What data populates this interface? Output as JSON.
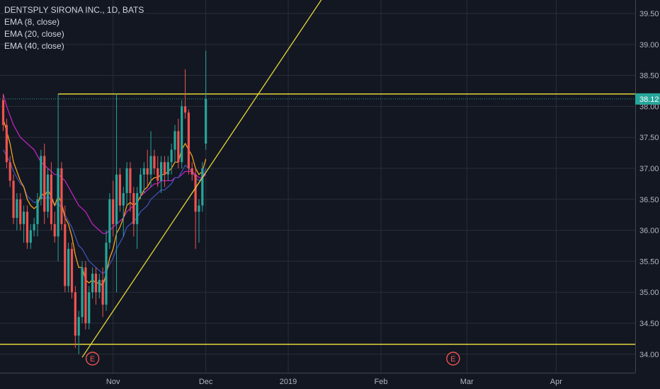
{
  "header": {
    "symbol_line": "DENTSPLY SIRONA INC., 1D, BATS"
  },
  "indicators": [
    {
      "label": "EMA (8, close)",
      "color": "#f7a21b"
    },
    {
      "label": "EMA (20, close)",
      "color": "#3f51b5"
    },
    {
      "label": "EMA (40, close)",
      "color": "#c021c0"
    }
  ],
  "colors": {
    "background": "#131722",
    "grid": "#2a2e39",
    "up": "#26a69a",
    "down": "#ef5350",
    "trendline": "#e5d63a",
    "price_line": "#26a69a",
    "axis_text": "#b2b5be"
  },
  "chart_data": {
    "type": "candlestick",
    "title": "DENTSPLY SIRONA INC., 1D, BATS",
    "y_axis": {
      "ylim": [
        33.8,
        39.7
      ],
      "ticks": [
        "34.00",
        "34.50",
        "35.00",
        "35.50",
        "36.00",
        "36.50",
        "37.00",
        "37.50",
        "38.00",
        "38.50",
        "39.00",
        "39.50"
      ],
      "side": "right"
    },
    "x_axis": {
      "ticks": [
        "Nov",
        "Dec",
        "2019",
        "Feb",
        "Mar",
        "Apr"
      ],
      "tick_index": [
        32,
        59,
        83,
        110,
        135,
        161
      ]
    },
    "current_price": "38.12",
    "ohlc": [
      [
        38.1,
        38.2,
        37.6,
        37.7
      ],
      [
        37.7,
        37.8,
        37.0,
        37.1
      ],
      [
        37.1,
        37.2,
        36.7,
        36.8
      ],
      [
        36.8,
        36.9,
        36.1,
        36.2
      ],
      [
        36.2,
        36.6,
        36.0,
        36.5
      ],
      [
        36.5,
        36.6,
        36.0,
        36.1
      ],
      [
        36.1,
        36.4,
        35.8,
        36.3
      ],
      [
        36.3,
        36.4,
        35.7,
        35.8
      ],
      [
        35.8,
        36.1,
        35.7,
        36.0
      ],
      [
        36.0,
        36.2,
        35.9,
        36.1
      ],
      [
        36.1,
        36.6,
        35.9,
        36.5
      ],
      [
        36.5,
        37.3,
        36.4,
        37.2
      ],
      [
        37.2,
        37.4,
        36.1,
        36.3
      ],
      [
        36.3,
        37.0,
        36.2,
        36.9
      ],
      [
        36.9,
        37.1,
        36.0,
        36.1
      ],
      [
        36.1,
        36.3,
        35.8,
        35.9
      ],
      [
        35.9,
        38.2,
        35.5,
        37.0
      ],
      [
        37.0,
        37.1,
        36.0,
        36.1
      ],
      [
        36.1,
        36.4,
        35.0,
        35.1
      ],
      [
        35.1,
        35.8,
        35.0,
        35.7
      ],
      [
        35.7,
        35.8,
        34.9,
        35.0
      ],
      [
        35.0,
        35.1,
        34.1,
        34.3
      ],
      [
        34.3,
        34.7,
        34.0,
        34.6
      ],
      [
        34.6,
        35.5,
        34.5,
        35.4
      ],
      [
        35.4,
        35.5,
        34.4,
        34.5
      ],
      [
        34.5,
        35.1,
        34.4,
        35.0
      ],
      [
        35.0,
        35.4,
        34.9,
        35.3
      ],
      [
        35.3,
        35.4,
        34.8,
        35.0
      ],
      [
        35.0,
        35.3,
        34.9,
        35.2
      ],
      [
        35.2,
        35.4,
        34.6,
        34.8
      ],
      [
        34.8,
        36.0,
        34.7,
        35.8
      ],
      [
        35.8,
        36.6,
        35.7,
        36.5
      ],
      [
        36.5,
        36.8,
        35.9,
        36.1
      ],
      [
        36.1,
        38.2,
        35.0,
        36.9
      ],
      [
        36.9,
        37.0,
        36.3,
        36.4
      ],
      [
        36.4,
        36.7,
        35.9,
        36.6
      ],
      [
        36.6,
        37.1,
        36.4,
        37.0
      ],
      [
        37.0,
        37.1,
        36.3,
        36.6
      ],
      [
        36.6,
        36.7,
        35.9,
        36.1
      ],
      [
        36.1,
        36.7,
        35.7,
        36.6
      ],
      [
        36.6,
        37.0,
        36.5,
        36.9
      ],
      [
        36.9,
        37.1,
        36.6,
        37.0
      ],
      [
        37.0,
        37.3,
        36.7,
        36.9
      ],
      [
        36.9,
        37.6,
        36.7,
        37.2
      ],
      [
        37.2,
        37.3,
        36.9,
        37.0
      ],
      [
        37.0,
        37.2,
        36.7,
        36.8
      ],
      [
        36.8,
        37.2,
        36.6,
        37.1
      ],
      [
        37.1,
        37.2,
        36.7,
        36.9
      ],
      [
        36.9,
        37.2,
        36.8,
        37.1
      ],
      [
        37.1,
        37.4,
        36.9,
        37.3
      ],
      [
        37.3,
        37.7,
        37.1,
        37.6
      ],
      [
        37.6,
        37.8,
        37.0,
        37.1
      ],
      [
        37.1,
        38.1,
        37.0,
        38.0
      ],
      [
        38.0,
        38.6,
        37.8,
        37.9
      ],
      [
        37.9,
        37.95,
        36.9,
        37.0
      ],
      [
        37.0,
        37.1,
        36.8,
        36.9
      ],
      [
        36.9,
        37.0,
        35.7,
        36.3
      ],
      [
        36.3,
        36.5,
        35.8,
        36.4
      ],
      [
        36.4,
        37.1,
        36.3,
        37.0
      ],
      [
        37.4,
        38.9,
        37.3,
        38.12
      ]
    ],
    "indicator_values": {
      "ema8": [
        37.8,
        37.6,
        37.4,
        37.1,
        36.95,
        36.8,
        36.7,
        36.5,
        36.4,
        36.35,
        36.4,
        36.6,
        36.55,
        36.65,
        36.55,
        36.4,
        36.55,
        36.45,
        36.2,
        36.1,
        35.9,
        35.6,
        35.4,
        35.4,
        35.2,
        35.15,
        35.2,
        35.15,
        35.15,
        35.1,
        35.3,
        35.55,
        35.7,
        35.95,
        36.05,
        36.2,
        36.4,
        36.45,
        36.4,
        36.45,
        36.55,
        36.65,
        36.7,
        36.8,
        36.85,
        36.85,
        36.9,
        36.9,
        36.95,
        37.0,
        37.1,
        37.1,
        37.3,
        37.4,
        37.3,
        37.2,
        37.0,
        36.9,
        36.95,
        37.15
      ],
      "ema20": [
        37.3,
        37.2,
        37.1,
        36.95,
        36.85,
        36.75,
        36.7,
        36.55,
        36.5,
        36.45,
        36.45,
        36.55,
        36.5,
        36.55,
        36.5,
        36.4,
        36.45,
        36.35,
        36.25,
        36.15,
        36.05,
        35.9,
        35.75,
        35.7,
        35.6,
        35.5,
        35.45,
        35.4,
        35.35,
        35.3,
        35.35,
        35.45,
        35.55,
        35.7,
        35.8,
        35.9,
        36.05,
        36.1,
        36.15,
        36.2,
        36.3,
        36.35,
        36.4,
        36.5,
        36.55,
        36.6,
        36.65,
        36.65,
        36.7,
        36.75,
        36.85,
        36.85,
        36.95,
        37.05,
        37.0,
        36.95,
        36.85,
        36.8,
        36.85,
        37.0
      ],
      "ema40": [
        38.2,
        38.0,
        37.85,
        37.7,
        37.6,
        37.5,
        37.45,
        37.4,
        37.35,
        37.3,
        37.2,
        37.1,
        37.05,
        37.0,
        36.95,
        36.9,
        36.9,
        36.85,
        36.8,
        36.7,
        36.6,
        36.5,
        36.4,
        36.35,
        36.3,
        36.2,
        36.1,
        36.05,
        36.0,
        35.95,
        35.95,
        36.0,
        36.05,
        36.1,
        36.15,
        36.2,
        36.3,
        36.35,
        36.4,
        36.45,
        36.55,
        36.6,
        36.65,
        36.7,
        36.75,
        36.75,
        36.8,
        36.8,
        36.8,
        36.8,
        36.85,
        36.85,
        36.9,
        36.95,
        36.95,
        36.95,
        36.9,
        36.85,
        36.85,
        36.9
      ]
    },
    "horizontal_levels": [
      38.2,
      34.16
    ],
    "trendline": {
      "from": {
        "index": 23,
        "price": 33.95
      },
      "to": {
        "index": 93,
        "price": 39.75
      }
    },
    "event_markers": [
      {
        "index": 26,
        "label": "E"
      },
      {
        "index": 131,
        "label": "E"
      }
    ]
  }
}
